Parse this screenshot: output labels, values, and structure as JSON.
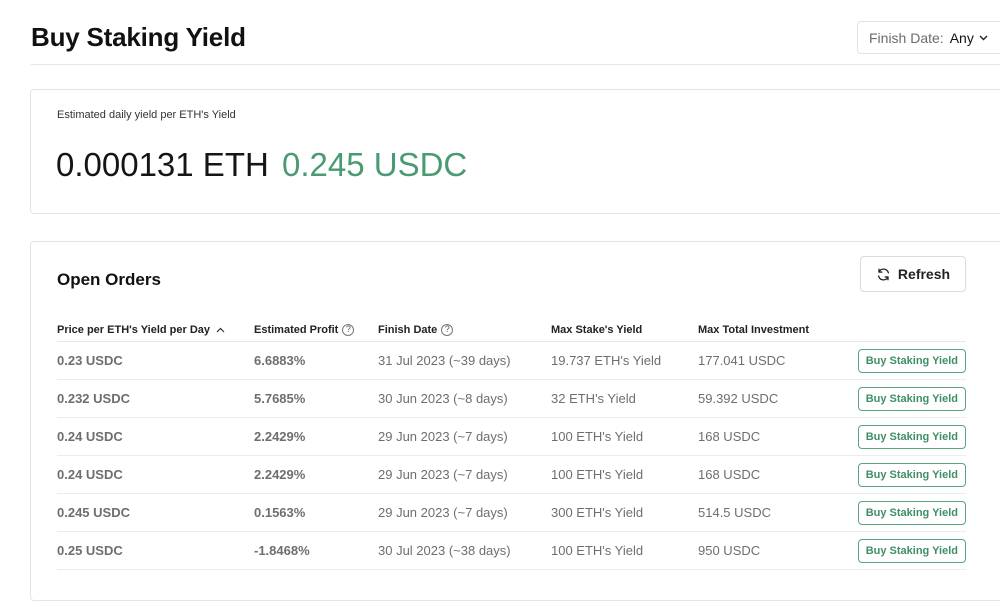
{
  "header": {
    "title": "Buy Staking Yield",
    "filter_label": "Finish Date:",
    "filter_value": "Any"
  },
  "yield_card": {
    "label": "Estimated daily yield per ETH's Yield",
    "eth_value": "0.000131 ETH",
    "usdc_value": "0.245 USDC"
  },
  "orders": {
    "title": "Open Orders",
    "refresh_label": "Refresh",
    "columns": {
      "price": "Price per ETH's Yield per Day",
      "profit": "Estimated Profit",
      "finish": "Finish Date",
      "max_stake": "Max Stake's Yield",
      "max_investment": "Max Total Investment"
    },
    "rows": [
      {
        "price": "0.23 USDC",
        "profit": "6.6883%",
        "finish": "31 Jul 2023 (~39 days)",
        "max_stake": "19.737 ETH's Yield",
        "max_investment": "177.041 USDC",
        "action": "Buy Staking Yield",
        "trend": "pos"
      },
      {
        "price": "0.232 USDC",
        "profit": "5.7685%",
        "finish": "30 Jun 2023 (~8 days)",
        "max_stake": "32 ETH's Yield",
        "max_investment": "59.392 USDC",
        "action": "Buy Staking Yield",
        "trend": "pos"
      },
      {
        "price": "0.24 USDC",
        "profit": "2.2429%",
        "finish": "29 Jun 2023 (~7 days)",
        "max_stake": "100 ETH's Yield",
        "max_investment": "168 USDC",
        "action": "Buy Staking Yield",
        "trend": "pos"
      },
      {
        "price": "0.24 USDC",
        "profit": "2.2429%",
        "finish": "29 Jun 2023 (~7 days)",
        "max_stake": "100 ETH's Yield",
        "max_investment": "168 USDC",
        "action": "Buy Staking Yield",
        "trend": "pos"
      },
      {
        "price": "0.245 USDC",
        "profit": "0.1563%",
        "finish": "29 Jun 2023 (~7 days)",
        "max_stake": "300 ETH's Yield",
        "max_investment": "514.5 USDC",
        "action": "Buy Staking Yield",
        "trend": "pos"
      },
      {
        "price": "0.25 USDC",
        "profit": "-1.8468%",
        "finish": "30 Jul 2023 (~38 days)",
        "max_stake": "100 ETH's Yield",
        "max_investment": "950 USDC",
        "action": "Buy Staking Yield",
        "trend": "neg"
      }
    ]
  },
  "colors": {
    "positive": "#4a9a72",
    "negative": "#d9464b"
  },
  "icons": {
    "filter_chevron": "chevron-down-icon",
    "refresh": "refresh-icon",
    "help": "help-circle-icon",
    "sort": "sort-ascending-icon"
  }
}
